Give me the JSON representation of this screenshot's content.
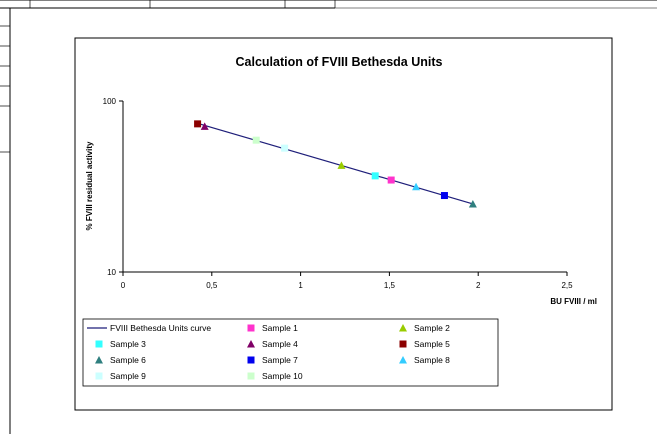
{
  "header_row": {
    "cell_1": "",
    "cell_2": ""
  },
  "chart_data": {
    "type": "scatter",
    "title": "Calculation of FVIII Bethesda Units",
    "xlabel": "BU FVIII / ml",
    "ylabel": "% FVIII residual activity",
    "x_ticks": [
      "0",
      "0,5",
      "1",
      "1,5",
      "2",
      "2,5"
    ],
    "y_ticks": [
      "10",
      "100"
    ],
    "xlim": [
      0,
      2.5
    ],
    "ylim": [
      10,
      100
    ],
    "y_scale": "log",
    "grid": false,
    "legend_position": "bottom",
    "curve": {
      "name": "FVIII Bethesda Units curve",
      "color": "#1f1f7a",
      "points": [
        [
          0.42,
          74.0
        ],
        [
          1.97,
          25.0
        ]
      ]
    },
    "series": [
      {
        "name": "Sample 1",
        "marker": "square",
        "color": "#ff33cc",
        "x": 1.51,
        "y": 34.5
      },
      {
        "name": "Sample 2",
        "marker": "triangle",
        "color": "#99cc00",
        "x": 1.23,
        "y": 42.0
      },
      {
        "name": "Sample 3",
        "marker": "square",
        "color": "#33ffff",
        "x": 1.42,
        "y": 36.5
      },
      {
        "name": "Sample 4",
        "marker": "triangle",
        "color": "#800066",
        "x": 0.46,
        "y": 71.0
      },
      {
        "name": "Sample 5",
        "marker": "square",
        "color": "#8b0000",
        "x": 0.42,
        "y": 73.5
      },
      {
        "name": "Sample 6",
        "marker": "triangle",
        "color": "#2f7f7f",
        "x": 1.97,
        "y": 25.0
      },
      {
        "name": "Sample 7",
        "marker": "square",
        "color": "#0000ee",
        "x": 1.81,
        "y": 28.0
      },
      {
        "name": "Sample 8",
        "marker": "triangle",
        "color": "#33ccff",
        "x": 1.65,
        "y": 31.5
      },
      {
        "name": "Sample 9",
        "marker": "square",
        "color": "#ccffff",
        "x": 0.91,
        "y": 53.0
      },
      {
        "name": "Sample 10",
        "marker": "square",
        "color": "#ccffcc",
        "x": 0.75,
        "y": 59.0
      }
    ]
  }
}
